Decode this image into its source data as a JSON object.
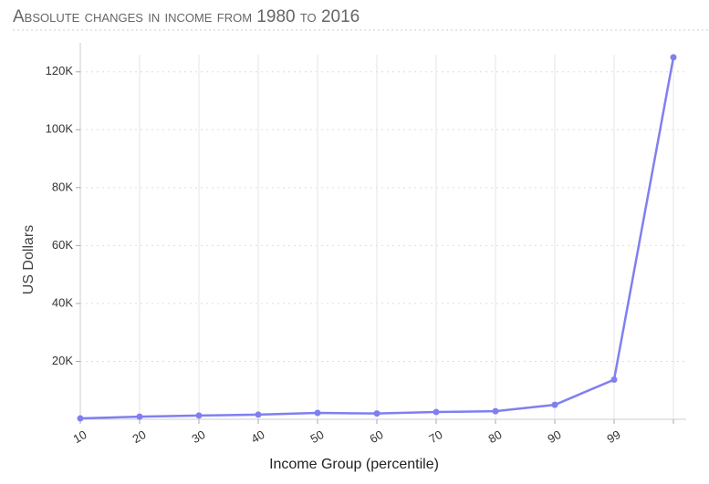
{
  "chart_data": {
    "type": "line",
    "title": "Absolute changes in income from 1980 to 2016",
    "x_label": "Income Group (percentile)",
    "y_label": "US Dollars",
    "categories": [
      "10",
      "20",
      "30",
      "40",
      "50",
      "60",
      "70",
      "80",
      "90",
      "99",
      null
    ],
    "series": [
      {
        "name": "Absolute change",
        "color": "#7f7ff2",
        "values": [
          300,
          900,
          1300,
          1600,
          2200,
          2000,
          2500,
          2800,
          5000,
          13700,
          125000
        ]
      }
    ],
    "ylim": [
      0,
      130000
    ],
    "yticks": [
      {
        "value": 20000,
        "label": "20K"
      },
      {
        "value": 40000,
        "label": "40K"
      },
      {
        "value": 60000,
        "label": "60K"
      },
      {
        "value": 80000,
        "label": "80K"
      },
      {
        "value": 100000,
        "label": "100K"
      },
      {
        "value": 120000,
        "label": "120K"
      }
    ],
    "grid": true
  }
}
